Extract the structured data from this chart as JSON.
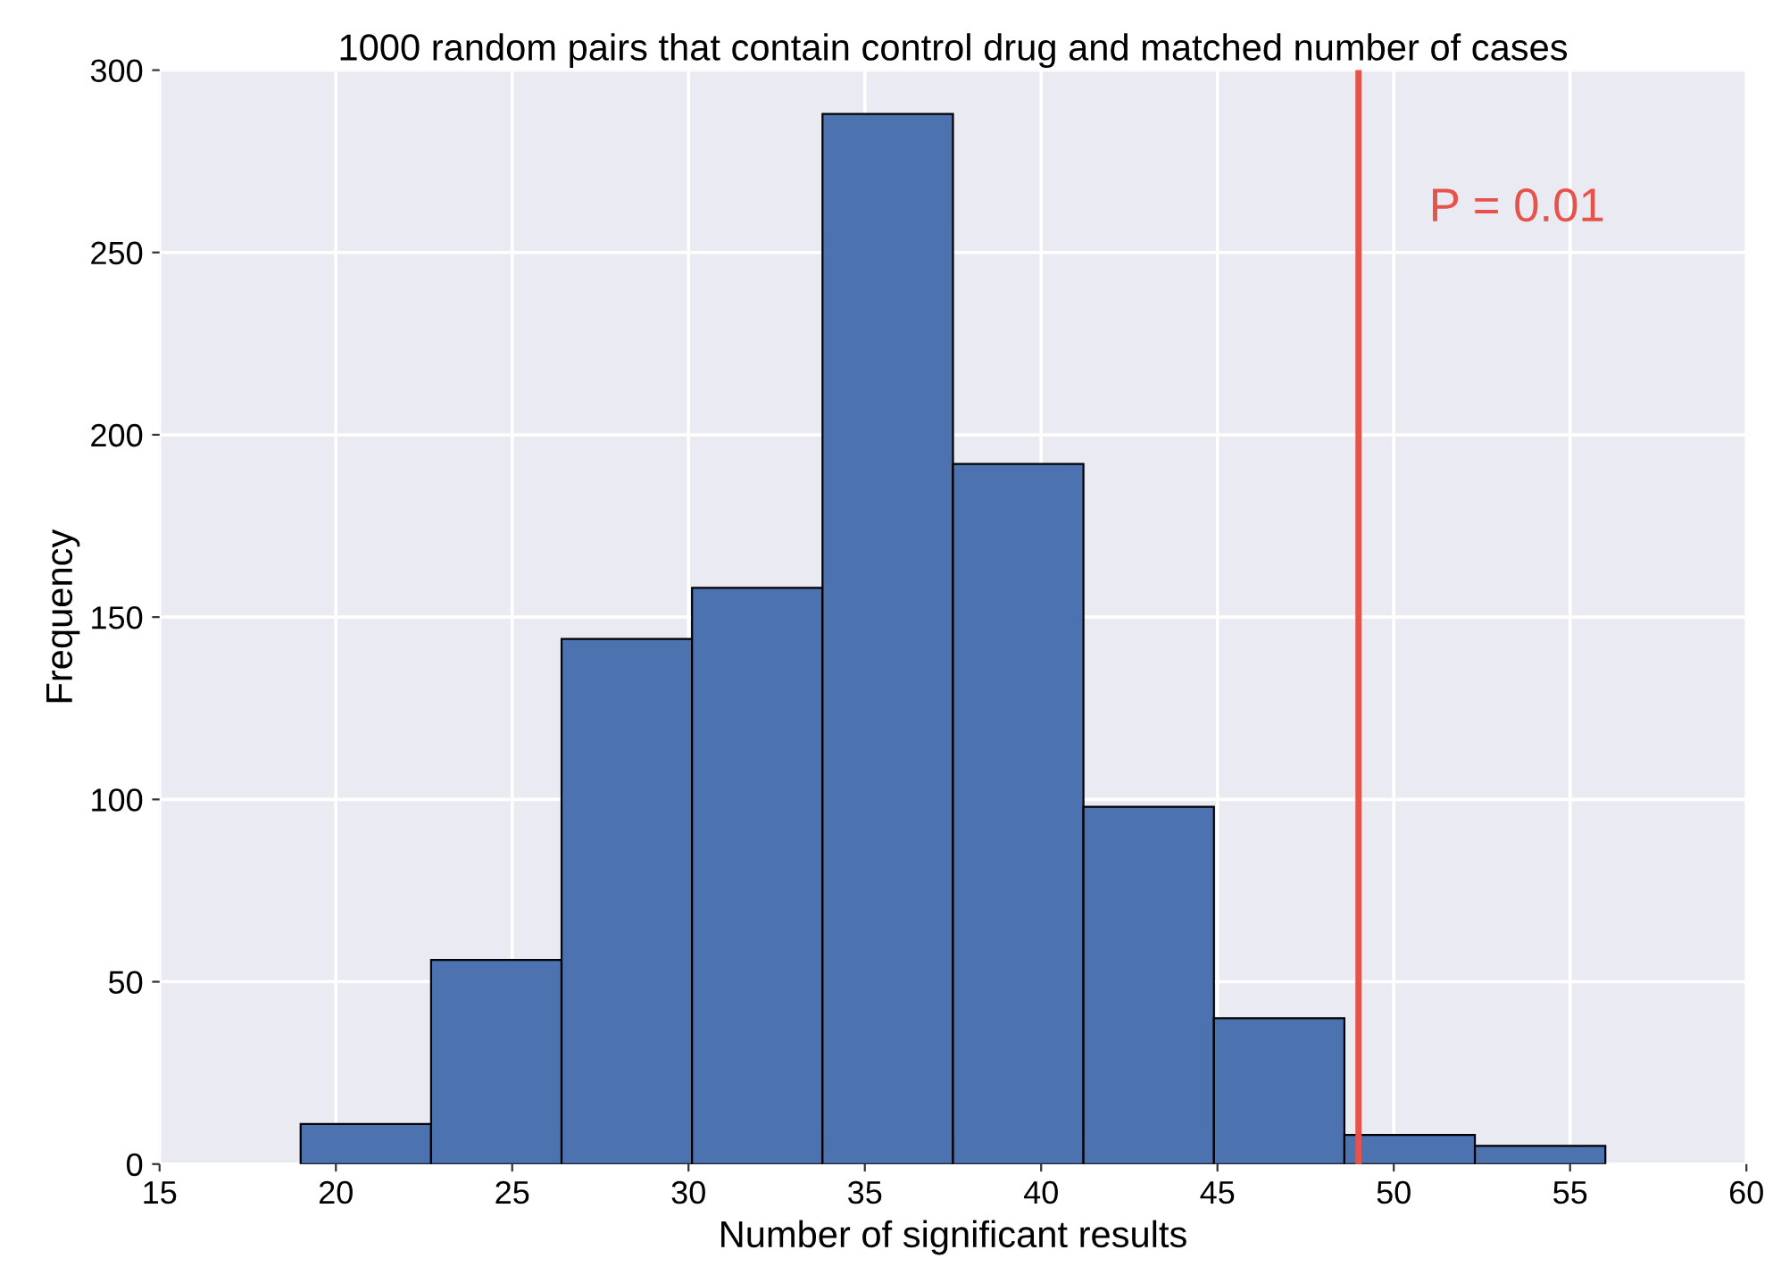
{
  "chart_data": {
    "type": "histogram",
    "title": "1000 random pairs that contain control drug and matched number of cases",
    "xlabel": "Number of significant results",
    "ylabel": "Frequency",
    "bins": [
      19,
      22.7,
      26.4,
      30.1,
      33.8,
      37.5,
      41.2,
      44.9,
      48.6,
      52.3,
      56
    ],
    "values": [
      11,
      56,
      144,
      158,
      288,
      192,
      98,
      40,
      8,
      5
    ],
    "color": "#4c72b0",
    "xlim": [
      15,
      60
    ],
    "xticks": [
      15,
      20,
      25,
      30,
      35,
      40,
      45,
      50,
      55,
      60
    ],
    "ylim": [
      0,
      300
    ],
    "yticks": [
      0,
      50,
      100,
      150,
      200,
      250,
      300
    ],
    "grid": true,
    "ref_lines": [
      {
        "axis": "x",
        "value": 49,
        "color": "#e5534b"
      }
    ],
    "annotations": [
      "P = 0.01"
    ]
  }
}
